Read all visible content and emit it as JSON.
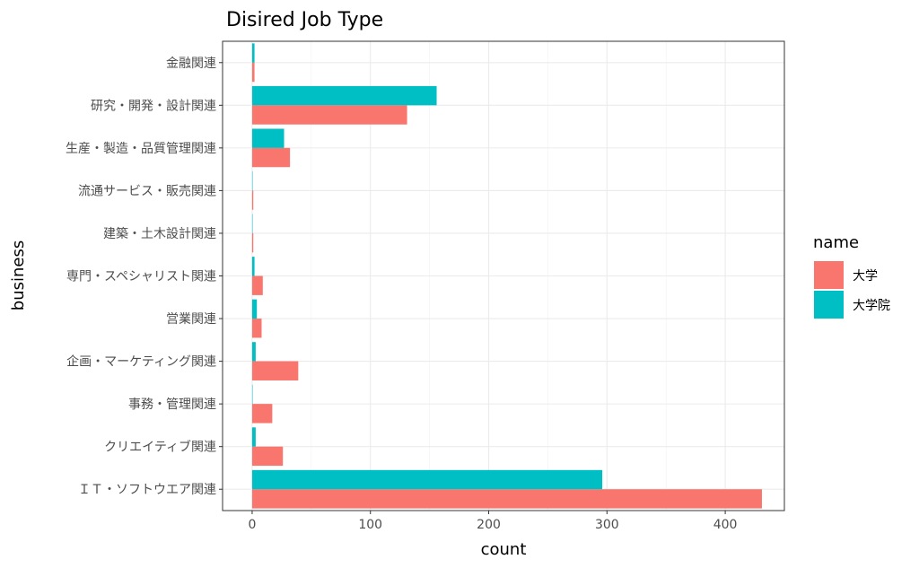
{
  "chart_data": {
    "type": "bar",
    "orientation": "horizontal",
    "title": "Disired Job Type",
    "xlabel": "count",
    "ylabel": "business",
    "xlim": [
      -25,
      450
    ],
    "x_ticks": [
      0,
      100,
      200,
      300,
      400
    ],
    "grid": true,
    "legend_position": "right",
    "legend_title": "name",
    "categories": [
      "金融関連",
      "研究・開発・設計関連",
      "生産・製造・品質管理関連",
      "流通サービス・販売関連",
      "建築・土木設計関連",
      "専門・スペシャリスト関連",
      "営業関連",
      "企画・マーケティング関連",
      "事務・管理関連",
      "クリエイティブ関連",
      "ＩＴ・ソフトウエア関連"
    ],
    "series": [
      {
        "name": "大学",
        "color": "#F8766D",
        "values": [
          2,
          131,
          32,
          1,
          1,
          9,
          8,
          39,
          17,
          26,
          431
        ]
      },
      {
        "name": "大学院",
        "color": "#00BFC4",
        "values": [
          2,
          156,
          27,
          0,
          0,
          2,
          4,
          3,
          0,
          3,
          296
        ]
      }
    ]
  }
}
